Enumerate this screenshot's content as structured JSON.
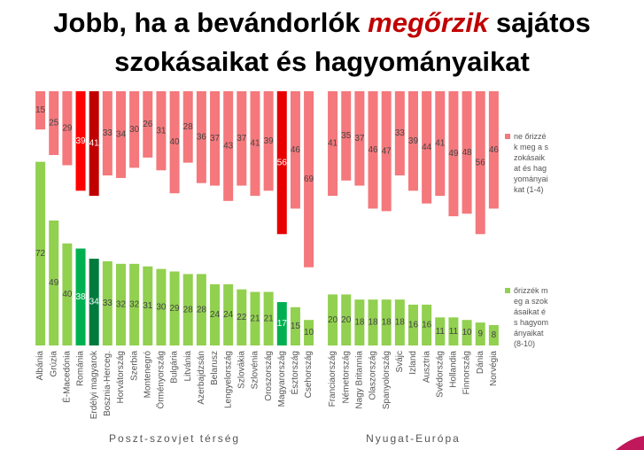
{
  "chart_data": {
    "type": "diverging_bar",
    "title_lines": [
      [
        "Jobb, ha a bevándorlók",
        "megőrzik",
        "sajátos"
      ],
      [
        "szokásaikat és hagyományaikat"
      ]
    ],
    "groups": [
      {
        "name": "Poszt-szovjet térség",
        "categories": [
          "Albánia",
          "Grúzia",
          "É-Macedónia",
          "Románia",
          "Erdélyi magyarok",
          "Bosznia-Herceg.",
          "Horvátország",
          "Szerbia",
          "Montenegró",
          "Örményország",
          "Bulgária",
          "Litvánia",
          "Azerbajdzsán",
          "Belarusz",
          "Lengyelország",
          "Szlovákia",
          "Szlovénia",
          "Oroszország",
          "Magyarország",
          "Észtország",
          "Csehország"
        ]
      },
      {
        "name": "Nyugat-Európa",
        "categories": [
          "Franciaország",
          "Németország",
          "Nagy Britannia",
          "Olaszország",
          "Spanyolország",
          "Svájc",
          "Izland",
          "Ausztria",
          "Svédország",
          "Hollandia",
          "Finnország",
          "Dánia",
          "Norvégia"
        ]
      }
    ],
    "series": [
      {
        "name": "ne őrizzék meg a szokásaikat és hagyományaikat (1-4)",
        "direction": "down",
        "color": "#f4787c",
        "values": [
          [
            15,
            25,
            29,
            39,
            41,
            33,
            34,
            30,
            26,
            31,
            40,
            28,
            36,
            37,
            43,
            37,
            41,
            39,
            56,
            46,
            69
          ],
          [
            41,
            35,
            37,
            46,
            47,
            33,
            39,
            44,
            41,
            49,
            48,
            56,
            46
          ]
        ],
        "colors": [
          [
            "#f4787c",
            "#f4787c",
            "#f4787c",
            "#ff0000",
            "#c00000",
            "#f4787c",
            "#f4787c",
            "#f4787c",
            "#f4787c",
            "#f4787c",
            "#f4787c",
            "#f4787c",
            "#f4787c",
            "#f4787c",
            "#f4787c",
            "#f4787c",
            "#f4787c",
            "#f4787c",
            "#e80000",
            "#f4787c",
            "#f4787c"
          ],
          [
            "#f4787c",
            "#f4787c",
            "#f4787c",
            "#f4787c",
            "#f4787c",
            "#f4787c",
            "#f4787c",
            "#f4787c",
            "#f4787c",
            "#f4787c",
            "#f4787c",
            "#f4787c",
            "#f4787c"
          ]
        ]
      },
      {
        "name": "őrizzék meg a szokásaikat és hagyományaikat (8-10)",
        "direction": "up",
        "color": "#92d050",
        "values": [
          [
            72,
            49,
            40,
            38,
            34,
            33,
            32,
            32,
            31,
            30,
            29,
            28,
            28,
            24,
            24,
            22,
            21,
            21,
            17,
            15,
            10
          ],
          [
            20,
            20,
            18,
            18,
            18,
            18,
            16,
            16,
            11,
            11,
            10,
            9,
            8
          ]
        ],
        "colors": [
          [
            "#92d050",
            "#92d050",
            "#92d050",
            "#00b050",
            "#007a3d",
            "#92d050",
            "#92d050",
            "#92d050",
            "#92d050",
            "#92d050",
            "#92d050",
            "#92d050",
            "#92d050",
            "#92d050",
            "#92d050",
            "#92d050",
            "#92d050",
            "#92d050",
            "#00b050",
            "#92d050",
            "#92d050"
          ],
          [
            "#92d050",
            "#92d050",
            "#92d050",
            "#92d050",
            "#92d050",
            "#92d050",
            "#92d050",
            "#92d050",
            "#92d050",
            "#92d050",
            "#92d050",
            "#92d050",
            "#92d050"
          ]
        ]
      }
    ]
  }
}
